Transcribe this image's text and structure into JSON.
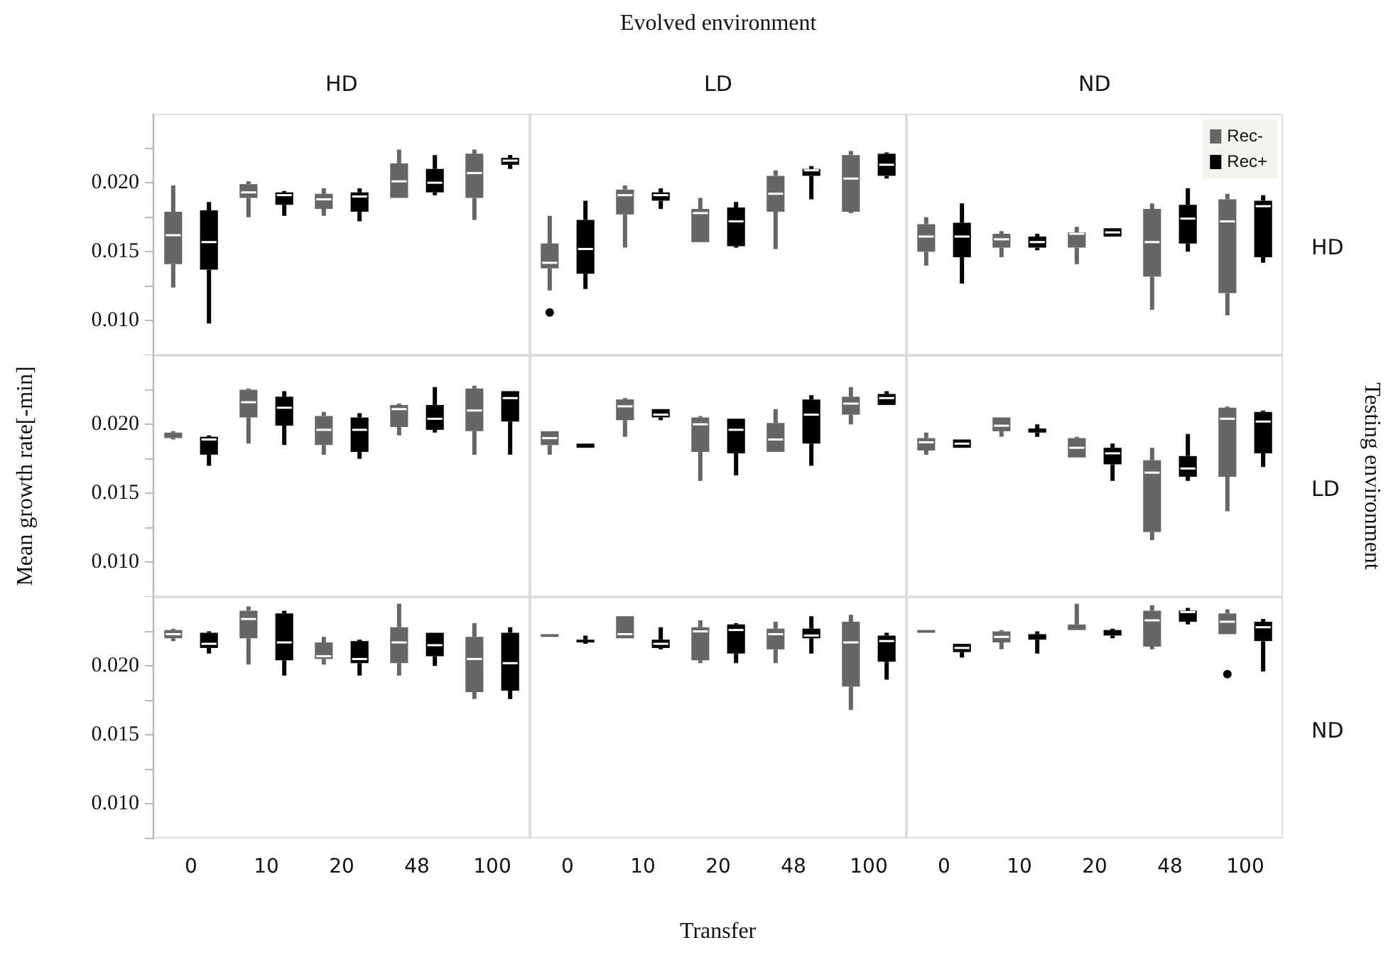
{
  "chart_data": [
    {
      "type": "box",
      "subtitle": "HD",
      "categories": [
        "0",
        "10",
        "20",
        "48",
        "100"
      ],
      "ylim": [
        0.0075,
        0.025
      ],
      "yticks": [
        {
          "value": 0.0075,
          "label": null
        },
        {
          "value": 0.01,
          "label": "0.010"
        },
        {
          "value": 0.0125,
          "label": null
        },
        {
          "value": 0.015,
          "label": "0.015"
        },
        {
          "value": 0.0175,
          "label": null
        },
        {
          "value": 0.02,
          "label": "0.020"
        },
        {
          "value": 0.0225,
          "label": null
        }
      ],
      "tick_labels": "y",
      "series": [
        {
          "color": "#666666",
          "boxes": [
            {
              "low": 0.0124,
              "q1": 0.0141,
              "median": 0.0162,
              "q3": 0.0179,
              "high": 0.0198
            },
            {
              "low": 0.0175,
              "q1": 0.0189,
              "median": 0.0193,
              "q3": 0.0199,
              "high": 0.0201
            },
            {
              "low": 0.0176,
              "q1": 0.0181,
              "median": 0.0188,
              "q3": 0.0192,
              "high": 0.0196
            },
            {
              "low": 0.0189,
              "q1": 0.0189,
              "median": 0.0201,
              "q3": 0.0214,
              "high": 0.0224
            },
            {
              "low": 0.0173,
              "q1": 0.0189,
              "median": 0.0207,
              "q3": 0.0221,
              "high": 0.0224
            }
          ]
        },
        {
          "color": "#000000",
          "boxes": [
            {
              "low": 0.0098,
              "q1": 0.0137,
              "median": 0.0157,
              "q3": 0.018,
              "high": 0.0186
            },
            {
              "low": 0.0176,
              "q1": 0.0184,
              "median": 0.0191,
              "q3": 0.0193,
              "high": 0.0194
            },
            {
              "low": 0.0172,
              "q1": 0.0179,
              "median": 0.019,
              "q3": 0.0193,
              "high": 0.0196
            },
            {
              "low": 0.0191,
              "q1": 0.0193,
              "median": 0.02,
              "q3": 0.021,
              "high": 0.022
            },
            {
              "low": 0.021,
              "q1": 0.0213,
              "median": 0.0216,
              "q3": 0.0218,
              "high": 0.022
            }
          ]
        }
      ]
    },
    {
      "type": "box",
      "title": "Evolved environment",
      "subtitle": "LD",
      "categories": [
        "0",
        "10",
        "20",
        "48",
        "100"
      ],
      "ylim": [
        0.0075,
        0.025
      ],
      "tick_labels": false,
      "series": [
        {
          "color": "#666666",
          "boxes": [
            {
              "low": 0.0122,
              "q1": 0.0138,
              "median": 0.0142,
              "q3": 0.0156,
              "high": 0.0176,
              "outliers": [
                0.0106
              ]
            },
            {
              "low": 0.0153,
              "q1": 0.0177,
              "median": 0.0191,
              "q3": 0.0195,
              "high": 0.0198
            },
            {
              "low": 0.0157,
              "q1": 0.0157,
              "median": 0.0178,
              "q3": 0.0181,
              "high": 0.0189
            },
            {
              "low": 0.0152,
              "q1": 0.0179,
              "median": 0.0192,
              "q3": 0.0205,
              "high": 0.0209
            },
            {
              "low": 0.0178,
              "q1": 0.0179,
              "median": 0.0203,
              "q3": 0.022,
              "high": 0.0223
            }
          ]
        },
        {
          "color": "#000000",
          "boxes": [
            {
              "low": 0.0123,
              "q1": 0.0134,
              "median": 0.0152,
              "q3": 0.0173,
              "high": 0.0187
            },
            {
              "low": 0.0181,
              "q1": 0.0187,
              "median": 0.0191,
              "q3": 0.0193,
              "high": 0.0196
            },
            {
              "low": 0.0153,
              "q1": 0.0154,
              "median": 0.0172,
              "q3": 0.0182,
              "high": 0.0186
            },
            {
              "low": 0.0188,
              "q1": 0.0205,
              "median": 0.0209,
              "q3": 0.021,
              "high": 0.0212
            },
            {
              "low": 0.0203,
              "q1": 0.0205,
              "median": 0.0213,
              "q3": 0.0221,
              "high": 0.0222
            }
          ]
        }
      ]
    },
    {
      "type": "box",
      "subtitle": "ND",
      "categories": [
        "0",
        "10",
        "20",
        "48",
        "100"
      ],
      "ylim": [
        0.0075,
        0.025
      ],
      "tick_labels": false,
      "legend": "top right",
      "annotations": [
        "HD"
      ],
      "series": [
        {
          "name": "Rec-",
          "color": "#666666",
          "boxes": [
            {
              "low": 0.014,
              "q1": 0.015,
              "median": 0.0161,
              "q3": 0.017,
              "high": 0.0175
            },
            {
              "low": 0.0146,
              "q1": 0.0153,
              "median": 0.0159,
              "q3": 0.0163,
              "high": 0.0165
            },
            {
              "low": 0.0141,
              "q1": 0.0153,
              "median": 0.0163,
              "q3": 0.0164,
              "high": 0.0168
            },
            {
              "low": 0.0108,
              "q1": 0.0132,
              "median": 0.0157,
              "q3": 0.0181,
              "high": 0.0185
            },
            {
              "low": 0.0104,
              "q1": 0.012,
              "median": 0.0172,
              "q3": 0.0188,
              "high": 0.0192
            }
          ]
        },
        {
          "name": "Rec+",
          "color": "#000000",
          "boxes": [
            {
              "low": 0.0127,
              "q1": 0.0146,
              "median": 0.0161,
              "q3": 0.0171,
              "high": 0.0185
            },
            {
              "low": 0.0151,
              "q1": 0.0153,
              "median": 0.0157,
              "q3": 0.0161,
              "high": 0.0163
            },
            {
              "low": 0.0161,
              "q1": 0.0161,
              "median": 0.0164,
              "q3": 0.0167,
              "high": 0.0167
            },
            {
              "low": 0.015,
              "q1": 0.0156,
              "median": 0.0174,
              "q3": 0.0184,
              "high": 0.0196
            },
            {
              "low": 0.0142,
              "q1": 0.0146,
              "median": 0.0183,
              "q3": 0.0187,
              "high": 0.0191
            }
          ]
        }
      ]
    },
    {
      "type": "box",
      "ylabel": "Mean growth rate[-min]",
      "categories": [
        "0",
        "10",
        "20",
        "48",
        "100"
      ],
      "ylim": [
        0.0075,
        0.025
      ],
      "yticks": [
        {
          "value": 0.0075,
          "label": null
        },
        {
          "value": 0.01,
          "label": "0.010"
        },
        {
          "value": 0.0125,
          "label": null
        },
        {
          "value": 0.015,
          "label": "0.015"
        },
        {
          "value": 0.0175,
          "label": null
        },
        {
          "value": 0.02,
          "label": "0.020"
        },
        {
          "value": 0.0225,
          "label": null
        }
      ],
      "tick_labels": "y",
      "series": [
        {
          "color": "#666666",
          "boxes": [
            {
              "low": 0.0189,
              "q1": 0.019,
              "median": 0.0192,
              "q3": 0.0194,
              "high": 0.0195
            },
            {
              "low": 0.0186,
              "q1": 0.0205,
              "median": 0.0216,
              "q3": 0.0225,
              "high": 0.0226
            },
            {
              "low": 0.0178,
              "q1": 0.0185,
              "median": 0.0196,
              "q3": 0.0206,
              "high": 0.0209
            },
            {
              "low": 0.0192,
              "q1": 0.0198,
              "median": 0.0211,
              "q3": 0.0214,
              "high": 0.0215
            },
            {
              "low": 0.0178,
              "q1": 0.0195,
              "median": 0.021,
              "q3": 0.0226,
              "high": 0.0228
            }
          ]
        },
        {
          "color": "#000000",
          "boxes": [
            {
              "low": 0.017,
              "q1": 0.0178,
              "median": 0.0189,
              "q3": 0.0191,
              "high": 0.0192
            },
            {
              "low": 0.0185,
              "q1": 0.0199,
              "median": 0.0212,
              "q3": 0.022,
              "high": 0.0224
            },
            {
              "low": 0.0175,
              "q1": 0.018,
              "median": 0.0196,
              "q3": 0.0205,
              "high": 0.0208
            },
            {
              "low": 0.0194,
              "q1": 0.0196,
              "median": 0.0204,
              "q3": 0.0214,
              "high": 0.0227
            },
            {
              "low": 0.0178,
              "q1": 0.0202,
              "median": 0.0219,
              "q3": 0.0224,
              "high": 0.0224
            }
          ]
        }
      ]
    },
    {
      "type": "box",
      "categories": [
        "0",
        "10",
        "20",
        "48",
        "100"
      ],
      "ylim": [
        0.0075,
        0.025
      ],
      "tick_labels": false,
      "series": [
        {
          "color": "#666666",
          "boxes": [
            {
              "low": 0.0178,
              "q1": 0.0185,
              "median": 0.019,
              "q3": 0.0195,
              "high": 0.0195
            },
            {
              "low": 0.0191,
              "q1": 0.0203,
              "median": 0.0213,
              "q3": 0.0218,
              "high": 0.0219
            },
            {
              "low": 0.0159,
              "q1": 0.018,
              "median": 0.02,
              "q3": 0.0205,
              "high": 0.0206
            },
            {
              "low": 0.018,
              "q1": 0.018,
              "median": 0.0189,
              "q3": 0.0201,
              "high": 0.0211
            },
            {
              "low": 0.02,
              "q1": 0.0207,
              "median": 0.0215,
              "q3": 0.022,
              "high": 0.0227
            }
          ]
        },
        {
          "color": "#000000",
          "boxes": [
            {
              "low": 0.0183,
              "q1": 0.0183,
              "median": 0.0185,
              "q3": 0.0186,
              "high": 0.0186
            },
            {
              "low": 0.0203,
              "q1": 0.0205,
              "median": 0.0207,
              "q3": 0.0211,
              "high": 0.0211
            },
            {
              "low": 0.0163,
              "q1": 0.0179,
              "median": 0.0196,
              "q3": 0.0204,
              "high": 0.0204
            },
            {
              "low": 0.017,
              "q1": 0.0186,
              "median": 0.0207,
              "q3": 0.0218,
              "high": 0.0221
            },
            {
              "low": 0.0214,
              "q1": 0.0214,
              "median": 0.0219,
              "q3": 0.0222,
              "high": 0.0224
            }
          ]
        }
      ]
    },
    {
      "type": "box",
      "y2label": "Testing environment",
      "annotations": [
        "LD"
      ],
      "categories": [
        "0",
        "10",
        "20",
        "48",
        "100"
      ],
      "ylim": [
        0.0075,
        0.025
      ],
      "tick_labels": false,
      "series": [
        {
          "color": "#666666",
          "boxes": [
            {
              "low": 0.0178,
              "q1": 0.0181,
              "median": 0.0187,
              "q3": 0.019,
              "high": 0.0194
            },
            {
              "low": 0.0191,
              "q1": 0.0195,
              "median": 0.0199,
              "q3": 0.0205,
              "high": 0.0205
            },
            {
              "low": 0.0176,
              "q1": 0.0176,
              "median": 0.0183,
              "q3": 0.019,
              "high": 0.0191
            },
            {
              "low": 0.0116,
              "q1": 0.0122,
              "median": 0.0165,
              "q3": 0.0174,
              "high": 0.0183
            },
            {
              "low": 0.0137,
              "q1": 0.0162,
              "median": 0.0204,
              "q3": 0.0212,
              "high": 0.0213
            }
          ]
        },
        {
          "color": "#000000",
          "boxes": [
            {
              "low": 0.0183,
              "q1": 0.0183,
              "median": 0.0186,
              "q3": 0.0189,
              "high": 0.0189
            },
            {
              "low": 0.0191,
              "q1": 0.0194,
              "median": 0.0195,
              "q3": 0.0197,
              "high": 0.02
            },
            {
              "low": 0.0159,
              "q1": 0.0171,
              "median": 0.0179,
              "q3": 0.0183,
              "high": 0.0186
            },
            {
              "low": 0.0159,
              "q1": 0.0162,
              "median": 0.0168,
              "q3": 0.0177,
              "high": 0.0193
            },
            {
              "low": 0.0169,
              "q1": 0.0179,
              "median": 0.0202,
              "q3": 0.0209,
              "high": 0.021
            }
          ]
        }
      ]
    },
    {
      "type": "box",
      "categories": [
        "0",
        "10",
        "20",
        "48",
        "100"
      ],
      "ylim": [
        0.0075,
        0.025
      ],
      "yticks": [
        {
          "value": 0.0075,
          "label": null
        },
        {
          "value": 0.01,
          "label": "0.010"
        },
        {
          "value": 0.0125,
          "label": null
        },
        {
          "value": 0.015,
          "label": "0.015"
        },
        {
          "value": 0.0175,
          "label": null
        },
        {
          "value": 0.02,
          "label": "0.020"
        },
        {
          "value": 0.0225,
          "label": null
        }
      ],
      "series": [
        {
          "color": "#666666",
          "boxes": [
            {
              "low": 0.0218,
              "q1": 0.022,
              "median": 0.0223,
              "q3": 0.0226,
              "high": 0.0227
            },
            {
              "low": 0.0201,
              "q1": 0.022,
              "median": 0.0234,
              "q3": 0.024,
              "high": 0.0243
            },
            {
              "low": 0.0201,
              "q1": 0.0205,
              "median": 0.0207,
              "q3": 0.0217,
              "high": 0.0221
            },
            {
              "low": 0.0193,
              "q1": 0.0202,
              "median": 0.0217,
              "q3": 0.0228,
              "high": 0.0245
            },
            {
              "low": 0.0176,
              "q1": 0.0181,
              "median": 0.0205,
              "q3": 0.0221,
              "high": 0.0231
            }
          ]
        },
        {
          "color": "#000000",
          "boxes": [
            {
              "low": 0.0209,
              "q1": 0.0213,
              "median": 0.0216,
              "q3": 0.0224,
              "high": 0.0225
            },
            {
              "low": 0.0193,
              "q1": 0.0204,
              "median": 0.0217,
              "q3": 0.0238,
              "high": 0.024
            },
            {
              "low": 0.0193,
              "q1": 0.0202,
              "median": 0.0205,
              "q3": 0.0218,
              "high": 0.0219
            },
            {
              "low": 0.02,
              "q1": 0.0207,
              "median": 0.0215,
              "q3": 0.0224,
              "high": 0.0224
            },
            {
              "low": 0.0176,
              "q1": 0.0182,
              "median": 0.0202,
              "q3": 0.0224,
              "high": 0.0228
            }
          ]
        }
      ]
    },
    {
      "type": "box",
      "xlabel": "Transfer",
      "categories": [
        "0",
        "10",
        "20",
        "48",
        "100"
      ],
      "ylim": [
        0.0075,
        0.025
      ],
      "tick_labels": "x",
      "series": [
        {
          "color": "#666666",
          "boxes": [
            {
              "low": 0.0221,
              "q1": 0.0221,
              "median": 0.0222,
              "q3": 0.0223,
              "high": 0.0223
            },
            {
              "low": 0.022,
              "q1": 0.022,
              "median": 0.0223,
              "q3": 0.0236,
              "high": 0.0236
            },
            {
              "low": 0.0202,
              "q1": 0.0204,
              "median": 0.0225,
              "q3": 0.0228,
              "high": 0.0233
            },
            {
              "low": 0.0202,
              "q1": 0.0212,
              "median": 0.0223,
              "q3": 0.0227,
              "high": 0.0232
            },
            {
              "low": 0.0168,
              "q1": 0.0185,
              "median": 0.0217,
              "q3": 0.0232,
              "high": 0.0237
            }
          ]
        },
        {
          "color": "#000000",
          "boxes": [
            {
              "low": 0.0216,
              "q1": 0.0217,
              "median": 0.0218,
              "q3": 0.0219,
              "high": 0.0222
            },
            {
              "low": 0.0212,
              "q1": 0.0213,
              "median": 0.0216,
              "q3": 0.0219,
              "high": 0.0228
            },
            {
              "low": 0.0202,
              "q1": 0.0209,
              "median": 0.0226,
              "q3": 0.023,
              "high": 0.0231
            },
            {
              "low": 0.0209,
              "q1": 0.022,
              "median": 0.0222,
              "q3": 0.0227,
              "high": 0.0236
            },
            {
              "low": 0.019,
              "q1": 0.0203,
              "median": 0.0218,
              "q3": 0.0222,
              "high": 0.0224
            }
          ]
        }
      ]
    },
    {
      "type": "box",
      "annotations": [
        "ND"
      ],
      "categories": [
        "0",
        "10",
        "20",
        "48",
        "100"
      ],
      "ylim": [
        0.0075,
        0.025
      ],
      "tick_labels": "x",
      "series": [
        {
          "color": "#666666",
          "boxes": [
            {
              "low": 0.0224,
              "q1": 0.0224,
              "median": 0.0225,
              "q3": 0.0226,
              "high": 0.0226
            },
            {
              "low": 0.0212,
              "q1": 0.0217,
              "median": 0.0221,
              "q3": 0.0225,
              "high": 0.0226
            },
            {
              "low": 0.0226,
              "q1": 0.0226,
              "median": 0.0227,
              "q3": 0.023,
              "high": 0.0245
            },
            {
              "low": 0.0212,
              "q1": 0.0214,
              "median": 0.0233,
              "q3": 0.024,
              "high": 0.0244
            },
            {
              "low": 0.0223,
              "q1": 0.0223,
              "median": 0.0232,
              "q3": 0.0238,
              "high": 0.0241,
              "outliers": [
                0.0194
              ]
            }
          ]
        },
        {
          "color": "#000000",
          "boxes": [
            {
              "low": 0.0206,
              "q1": 0.021,
              "median": 0.0213,
              "q3": 0.0216,
              "high": 0.0216
            },
            {
              "low": 0.0209,
              "q1": 0.0219,
              "median": 0.022,
              "q3": 0.0223,
              "high": 0.0225
            },
            {
              "low": 0.022,
              "q1": 0.0222,
              "median": 0.0224,
              "q3": 0.0226,
              "high": 0.0227
            },
            {
              "low": 0.023,
              "q1": 0.0232,
              "median": 0.0239,
              "q3": 0.024,
              "high": 0.0242
            },
            {
              "low": 0.0196,
              "q1": 0.0218,
              "median": 0.0228,
              "q3": 0.0232,
              "high": 0.0234
            }
          ]
        }
      ]
    }
  ]
}
